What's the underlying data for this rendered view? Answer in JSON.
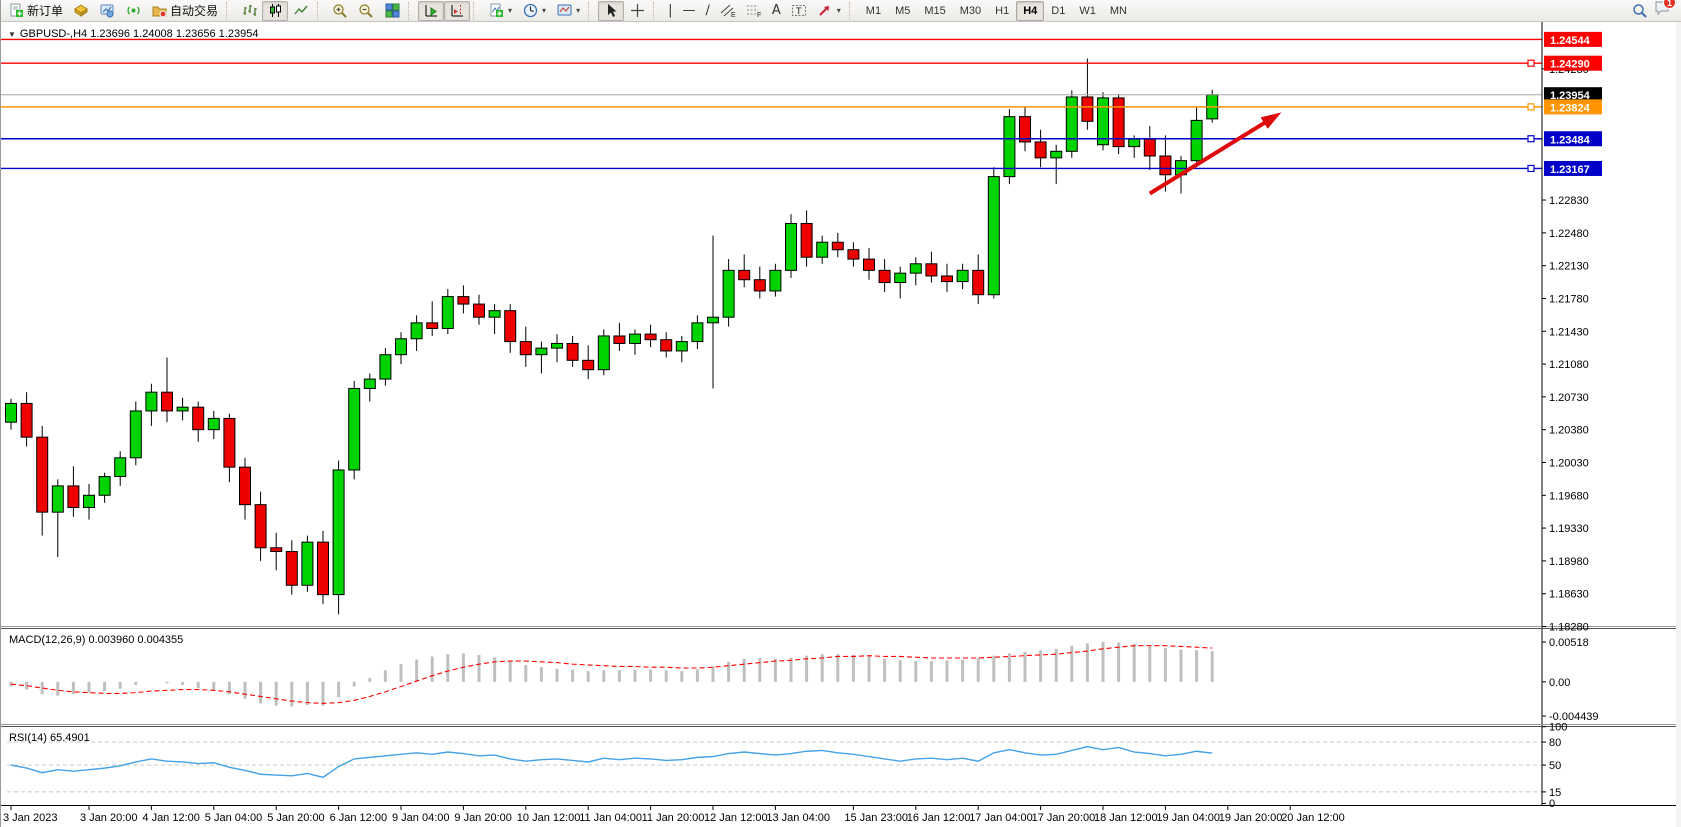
{
  "toolbar": {
    "new_order_label": "新订单",
    "auto_trading_label": "自动交易",
    "chart_type_tools": [
      "bar-chart",
      "candlestick-chart",
      "line-chart"
    ],
    "active_chart_type": "candlestick-chart",
    "timeframes": [
      "M1",
      "M5",
      "M15",
      "M30",
      "H1",
      "H4",
      "D1",
      "W1",
      "MN"
    ],
    "active_timeframe": "H4",
    "line_tools": [
      "cursor",
      "crosshair",
      "vertical-line",
      "horizontal-line",
      "trendline",
      "equidistant-channel",
      "fibonacci",
      "text",
      "text-label",
      "arrows"
    ],
    "notification_count": "1",
    "channel_tool_letter": "E",
    "fibo_tool_letter": "F",
    "text_tool_letter": "A",
    "label_tool_letter": "T"
  },
  "chart": {
    "title": "GBPUSD-,H4  1.23696 1.24008 1.23656 1.23954",
    "symbol": "GBPUSD-",
    "period": "H4",
    "ohlc": {
      "open": "1.23696",
      "high": "1.24008",
      "low": "1.23656",
      "close": "1.23954"
    }
  },
  "indicators": {
    "macd_label": "MACD(12,26,9) 0.003960 0.004355",
    "rsi_label": "RSI(14) 65.4901"
  },
  "chart_data": {
    "type": "candlestick",
    "symbol": "GBPUSD-",
    "timeframe": "H4",
    "view": {
      "price_top": 1.24719,
      "price_bottom": 1.18296
    },
    "colors": {
      "bull": "#00D400",
      "bear": "#EE0000",
      "wick": "#000000",
      "current_price_line": "#A8A8A8",
      "macd_histogram": "#BFBFBF",
      "macd_signal": "#FF0000",
      "rsi_line": "#44A2E8",
      "level_grid": "#C8C8C8"
    },
    "price_axis_ticks": [
      "1.24230",
      "1.22830",
      "1.22480",
      "1.22130",
      "1.21780",
      "1.21430",
      "1.21080",
      "1.20730",
      "1.20380",
      "1.20030",
      "1.19680",
      "1.19330",
      "1.18980",
      "1.18630",
      "1.18280"
    ],
    "levels": [
      {
        "price": 1.24544,
        "label": "1.24544",
        "color": "#FF0000",
        "badge_bg": "#FF0000",
        "badge_fg": "#FFFFFF",
        "handle": false
      },
      {
        "price": 1.2429,
        "label": "1.24290",
        "color": "#FF0000",
        "badge_bg": "#FF0000",
        "badge_fg": "#FFFFFF",
        "handle": true
      },
      {
        "price": 1.23954,
        "label": "1.23954",
        "color": "#A8A8A8",
        "badge_bg": "#000000",
        "badge_fg": "#FFFFFF",
        "handle": false,
        "current": true
      },
      {
        "price": 1.23824,
        "label": "1.23824",
        "color": "#FF9500",
        "badge_bg": "#FF9500",
        "badge_fg": "#FFFFFF",
        "handle": true
      },
      {
        "price": 1.23484,
        "label": "1.23484",
        "color": "#0000C8",
        "badge_bg": "#0000C8",
        "badge_fg": "#FFFFFF",
        "handle": true
      },
      {
        "price": 1.23167,
        "label": "1.23167",
        "color": "#0000C8",
        "badge_bg": "#0000C8",
        "badge_fg": "#FFFFFF",
        "handle": true
      }
    ],
    "time_labels": [
      {
        "bar": 0,
        "text": "3 Jan 2023"
      },
      {
        "bar": 5,
        "text": "3 Jan 20:00"
      },
      {
        "bar": 9,
        "text": "4 Jan 12:00"
      },
      {
        "bar": 13,
        "text": "5 Jan 04:00"
      },
      {
        "bar": 17,
        "text": "5 Jan 20:00"
      },
      {
        "bar": 21,
        "text": "6 Jan 12:00"
      },
      {
        "bar": 25,
        "text": "9 Jan 04:00"
      },
      {
        "bar": 29,
        "text": "9 Jan 20:00"
      },
      {
        "bar": 33,
        "text": "10 Jan 12:00"
      },
      {
        "bar": 37,
        "text": "11 Jan 04:00"
      },
      {
        "bar": 41,
        "text": "11 Jan 20:00"
      },
      {
        "bar": 45,
        "text": "12 Jan 12:00"
      },
      {
        "bar": 49,
        "text": "13 Jan 04:00"
      },
      {
        "bar": 54,
        "text": "15 Jan 23:00"
      },
      {
        "bar": 58,
        "text": "16 Jan 12:00"
      },
      {
        "bar": 62,
        "text": "17 Jan 04:00"
      },
      {
        "bar": 66,
        "text": "17 Jan 20:00"
      },
      {
        "bar": 70,
        "text": "18 Jan 12:00"
      },
      {
        "bar": 74,
        "text": "19 Jan 04:00"
      },
      {
        "bar": 78,
        "text": "19 Jan 20:00"
      },
      {
        "bar": 82,
        "text": "20 Jan 12:00"
      }
    ],
    "candles": [
      [
        1.2046,
        1.2071,
        1.2038,
        1.2066
      ],
      [
        1.2066,
        1.2078,
        1.202,
        1.203
      ],
      [
        1.203,
        1.2042,
        1.1925,
        1.195
      ],
      [
        1.195,
        1.1985,
        1.1902,
        1.1978
      ],
      [
        1.1978,
        1.1999,
        1.1945,
        1.1955
      ],
      [
        1.1955,
        1.198,
        1.1942,
        1.1968
      ],
      [
        1.1968,
        1.1992,
        1.196,
        1.1988
      ],
      [
        1.1988,
        1.2015,
        1.1978,
        1.2008
      ],
      [
        1.2008,
        1.2068,
        1.2,
        1.2058
      ],
      [
        1.2058,
        1.2087,
        1.2042,
        1.2078
      ],
      [
        1.2078,
        1.2115,
        1.2046,
        1.2058
      ],
      [
        1.2058,
        1.2072,
        1.2048,
        1.2062
      ],
      [
        1.2062,
        1.2068,
        1.2025,
        1.2038
      ],
      [
        1.2038,
        1.2058,
        1.2028,
        1.205
      ],
      [
        1.205,
        1.2055,
        1.1982,
        1.1998
      ],
      [
        1.1998,
        1.2008,
        1.1942,
        1.1958
      ],
      [
        1.1958,
        1.1972,
        1.1898,
        1.1912
      ],
      [
        1.1912,
        1.1928,
        1.1888,
        1.1908
      ],
      [
        1.1908,
        1.192,
        1.1862,
        1.1872
      ],
      [
        1.1872,
        1.1925,
        1.1865,
        1.1918
      ],
      [
        1.1918,
        1.193,
        1.1852,
        1.1862
      ],
      [
        1.1862,
        1.2005,
        1.1841,
        1.1995
      ],
      [
        1.1995,
        1.209,
        1.1985,
        1.2082
      ],
      [
        1.2082,
        1.2098,
        1.2068,
        1.2092
      ],
      [
        1.2092,
        1.2125,
        1.2085,
        1.2118
      ],
      [
        1.2118,
        1.2142,
        1.2108,
        1.2135
      ],
      [
        1.2135,
        1.216,
        1.2122,
        1.2152
      ],
      [
        1.2152,
        1.2175,
        1.2138,
        1.2146
      ],
      [
        1.2146,
        1.2188,
        1.214,
        1.218
      ],
      [
        1.218,
        1.2192,
        1.2162,
        1.2172
      ],
      [
        1.2172,
        1.2182,
        1.215,
        1.2158
      ],
      [
        1.2158,
        1.2172,
        1.214,
        1.2165
      ],
      [
        1.2165,
        1.2172,
        1.212,
        1.2132
      ],
      [
        1.2132,
        1.2148,
        1.2105,
        1.2118
      ],
      [
        1.2118,
        1.2132,
        1.2098,
        1.2125
      ],
      [
        1.2125,
        1.214,
        1.211,
        1.213
      ],
      [
        1.213,
        1.2138,
        1.2105,
        1.2112
      ],
      [
        1.2112,
        1.2128,
        1.2092,
        1.2102
      ],
      [
        1.2102,
        1.2145,
        1.2096,
        1.2138
      ],
      [
        1.2138,
        1.2152,
        1.2122,
        1.213
      ],
      [
        1.213,
        1.2145,
        1.2118,
        1.214
      ],
      [
        1.214,
        1.215,
        1.2126,
        1.2134
      ],
      [
        1.2134,
        1.2142,
        1.2115,
        1.2122
      ],
      [
        1.2122,
        1.2138,
        1.211,
        1.2132
      ],
      [
        1.2132,
        1.216,
        1.2124,
        1.2152
      ],
      [
        1.2152,
        1.2245,
        1.2082,
        1.2158
      ],
      [
        1.2158,
        1.222,
        1.2148,
        1.2208
      ],
      [
        1.2208,
        1.2225,
        1.219,
        1.2198
      ],
      [
        1.2198,
        1.2212,
        1.2178,
        1.2186
      ],
      [
        1.2186,
        1.2215,
        1.218,
        1.2208
      ],
      [
        1.2208,
        1.2268,
        1.22,
        1.2258
      ],
      [
        1.2258,
        1.2272,
        1.2212,
        1.2222
      ],
      [
        1.2222,
        1.2245,
        1.2215,
        1.2238
      ],
      [
        1.2238,
        1.2248,
        1.2222,
        1.223
      ],
      [
        1.223,
        1.2238,
        1.2212,
        1.222
      ],
      [
        1.222,
        1.2232,
        1.2198,
        1.2208
      ],
      [
        1.2208,
        1.222,
        1.2185,
        1.2195
      ],
      [
        1.2195,
        1.2212,
        1.2178,
        1.2205
      ],
      [
        1.2205,
        1.2222,
        1.2192,
        1.2215
      ],
      [
        1.2215,
        1.2228,
        1.2195,
        1.2202
      ],
      [
        1.2202,
        1.2215,
        1.2185,
        1.2196
      ],
      [
        1.2196,
        1.2215,
        1.2188,
        1.2208
      ],
      [
        1.2208,
        1.2225,
        1.2172,
        1.2182
      ],
      [
        1.2182,
        1.2318,
        1.2178,
        1.2308
      ],
      [
        1.2308,
        1.238,
        1.23,
        1.2372
      ],
      [
        1.2372,
        1.2382,
        1.2335,
        1.2345
      ],
      [
        1.2345,
        1.2358,
        1.2318,
        1.2328
      ],
      [
        1.2328,
        1.2342,
        1.23,
        1.2335
      ],
      [
        1.2335,
        1.24,
        1.2328,
        1.2393
      ],
      [
        1.2393,
        1.2434,
        1.2358,
        1.2367
      ],
      [
        1.2342,
        1.2398,
        1.2336,
        1.2392
      ],
      [
        1.2392,
        1.2396,
        1.2332,
        1.234
      ],
      [
        1.234,
        1.2352,
        1.2328,
        1.2348
      ],
      [
        1.2348,
        1.2362,
        1.2315,
        1.233
      ],
      [
        1.233,
        1.2352,
        1.2292,
        1.231
      ],
      [
        1.231,
        1.233,
        1.229,
        1.2325
      ],
      [
        1.2325,
        1.2382,
        1.2318,
        1.2368
      ],
      [
        1.23696,
        1.24008,
        1.23656,
        1.23954
      ]
    ],
    "macd": {
      "params": "12,26,9",
      "value": 0.00396,
      "signal_value": 0.004355,
      "scale_max": 0.00518,
      "scale_min": -0.004439,
      "axis_ticks": [
        "0.00518",
        "0.00",
        "-0.004439"
      ],
      "histogram": [
        -0.0006,
        -0.001,
        -0.0016,
        -0.0018,
        -0.0016,
        -0.0014,
        -0.0012,
        -0.0009,
        -0.0004,
        0.0,
        -0.0002,
        -0.0004,
        -0.0008,
        -0.0012,
        -0.0016,
        -0.0022,
        -0.0028,
        -0.0031,
        -0.0032,
        -0.003,
        -0.0031,
        -0.002,
        -0.0006,
        0.0005,
        0.0015,
        0.0023,
        0.0029,
        0.0033,
        0.0036,
        0.0037,
        0.0035,
        0.0032,
        0.0027,
        0.0022,
        0.0019,
        0.0017,
        0.0016,
        0.0014,
        0.0015,
        0.0015,
        0.0016,
        0.0016,
        0.0015,
        0.0014,
        0.0016,
        0.002,
        0.0026,
        0.003,
        0.0031,
        0.003,
        0.0031,
        0.0034,
        0.0036,
        0.0036,
        0.0035,
        0.0033,
        0.003,
        0.0028,
        0.0027,
        0.0027,
        0.0028,
        0.0029,
        0.0031,
        0.0034,
        0.0037,
        0.0039,
        0.0041,
        0.0043,
        0.0047,
        0.005,
        0.0052,
        0.0051,
        0.0049,
        0.0046,
        0.0044,
        0.0042,
        0.0041,
        0.004
      ],
      "signal": [
        -0.0003,
        -0.0005,
        -0.0008,
        -0.0011,
        -0.0013,
        -0.0014,
        -0.0015,
        -0.0015,
        -0.0014,
        -0.0012,
        -0.0011,
        -0.001,
        -0.001,
        -0.0011,
        -0.0013,
        -0.0016,
        -0.0019,
        -0.0022,
        -0.0025,
        -0.0027,
        -0.0028,
        -0.0027,
        -0.0024,
        -0.0019,
        -0.0013,
        -0.0006,
        0.0001,
        0.0008,
        0.0014,
        0.0019,
        0.0023,
        0.0026,
        0.0027,
        0.0027,
        0.0026,
        0.0025,
        0.0023,
        0.0022,
        0.0021,
        0.002,
        0.002,
        0.0019,
        0.0019,
        0.0018,
        0.0018,
        0.0019,
        0.0021,
        0.0023,
        0.0025,
        0.0027,
        0.0028,
        0.003,
        0.0031,
        0.0033,
        0.0033,
        0.0034,
        0.0033,
        0.0033,
        0.0032,
        0.0031,
        0.0031,
        0.0031,
        0.0031,
        0.0032,
        0.0033,
        0.0034,
        0.0035,
        0.0036,
        0.0038,
        0.004,
        0.0043,
        0.0045,
        0.0047,
        0.0047,
        0.0047,
        0.0046,
        0.0045,
        0.0044
      ]
    },
    "rsi": {
      "period": 14,
      "value": 65.4901,
      "axis_ticks": [
        "100",
        "80",
        "50",
        "15",
        "0"
      ],
      "level_lines": [
        80,
        50,
        15
      ],
      "values": [
        50,
        46,
        40,
        44,
        42,
        44,
        46,
        49,
        54,
        58,
        55,
        54,
        52,
        53,
        47,
        43,
        38,
        37,
        36,
        39,
        34,
        48,
        58,
        60,
        62,
        64,
        66,
        64,
        67,
        65,
        62,
        63,
        58,
        55,
        57,
        58,
        56,
        54,
        59,
        57,
        59,
        58,
        56,
        57,
        60,
        61,
        65,
        67,
        65,
        63,
        65,
        68,
        69,
        66,
        64,
        61,
        58,
        55,
        58,
        59,
        57,
        59,
        55,
        66,
        70,
        66,
        63,
        64,
        69,
        74,
        70,
        73,
        67,
        65,
        62,
        64,
        68,
        65.49
      ],
      "end_value": 65.49
    },
    "annotations": [
      {
        "type": "arrow",
        "from": {
          "bar": 73,
          "price": 1.229
        },
        "to": {
          "bar": 81,
          "price": 1.2372
        },
        "color": "#DD0A0A",
        "width": 4
      }
    ]
  }
}
